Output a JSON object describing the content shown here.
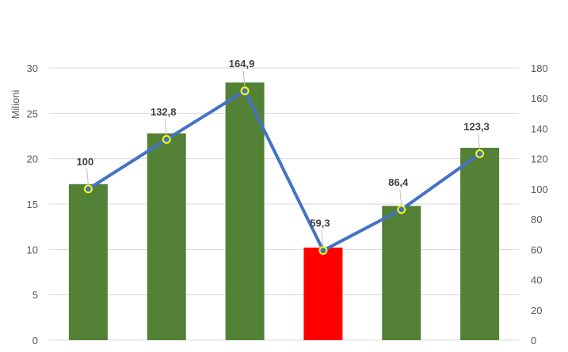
{
  "chart_data": {
    "type": "bar",
    "categories": [],
    "left_axis": {
      "label": "Milioni",
      "ylim": [
        0,
        30
      ],
      "ticks": [
        0,
        5,
        10,
        15,
        20,
        25,
        30
      ]
    },
    "right_axis": {
      "ylim": [
        0,
        180
      ],
      "ticks": [
        0,
        20,
        40,
        60,
        80,
        100,
        120,
        140,
        160,
        180
      ]
    },
    "bar_series": {
      "values": [
        17.2,
        22.8,
        28.4,
        10.2,
        14.8,
        21.2
      ],
      "colors": [
        "#538135",
        "#538135",
        "#538135",
        "#ff0000",
        "#538135",
        "#538135"
      ]
    },
    "line_series": {
      "axis": "right",
      "values": [
        100,
        132.8,
        164.9,
        59.3,
        86.4,
        123.3
      ],
      "labels": [
        "100",
        "132,8",
        "164,9",
        "59,3",
        "86,4",
        "123,3"
      ],
      "line_color": "#4472c4",
      "marker_color": "#ffff00"
    },
    "grid": true,
    "colors": {
      "gridline": "#d9d9d9",
      "label_leader": "#bfbfbf"
    }
  }
}
